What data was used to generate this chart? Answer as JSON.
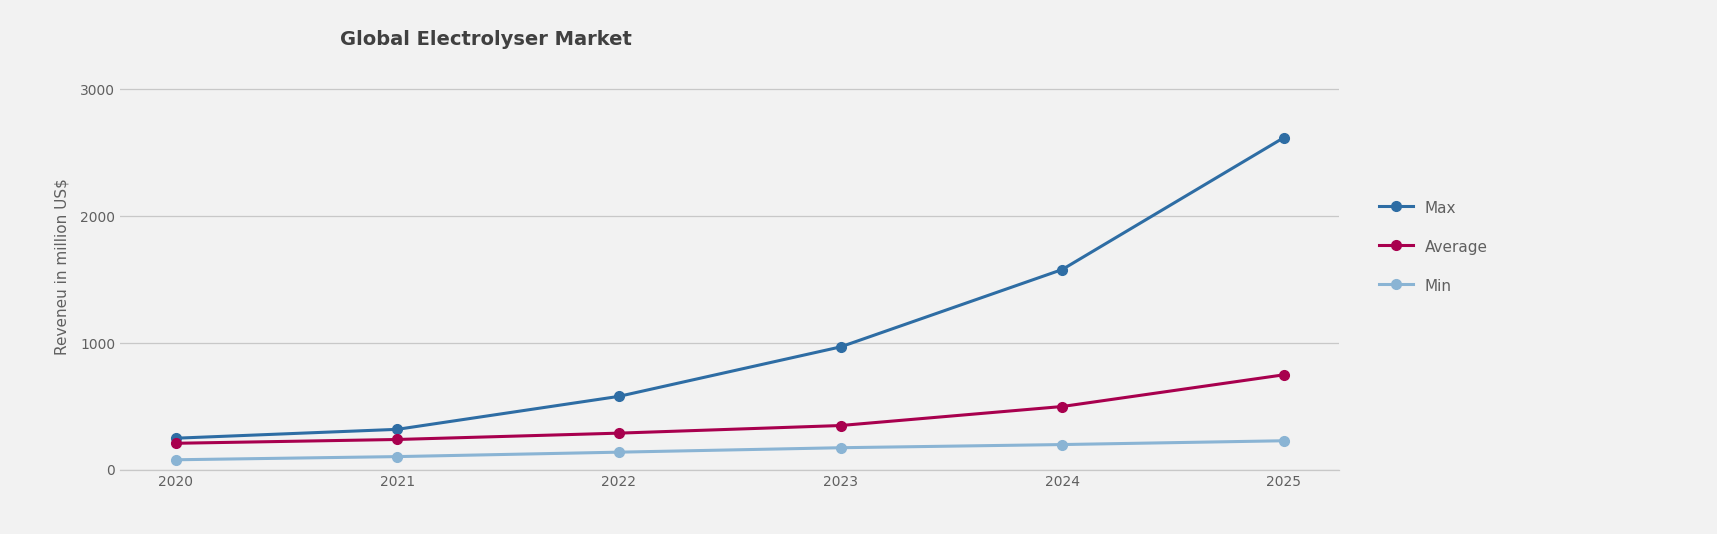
{
  "title": "Global Electrolyser Market",
  "ylabel": "Reveneu in million US$",
  "years": [
    2020,
    2021,
    2022,
    2023,
    2024,
    2025
  ],
  "max_values": [
    250,
    320,
    580,
    970,
    1580,
    2620
  ],
  "average_values": [
    210,
    240,
    290,
    350,
    500,
    750
  ],
  "min_values": [
    80,
    105,
    140,
    175,
    200,
    230
  ],
  "max_color": "#2e6da4",
  "average_color": "#a8004e",
  "min_color": "#8ab4d4",
  "background_color": "#f2f2f2",
  "plot_area_color": "#f2f2f2",
  "ylim": [
    0,
    3200
  ],
  "yticks": [
    0,
    1000,
    2000,
    3000
  ],
  "title_fontsize": 14,
  "axis_label_fontsize": 11,
  "tick_fontsize": 10,
  "legend_fontsize": 11,
  "line_width": 2.2,
  "marker": "o",
  "marker_size": 7,
  "grid_color": "#c8c8c8",
  "title_color": "#404040",
  "label_color": "#606060",
  "tick_color": "#606060",
  "legend_label_color": "#606060"
}
